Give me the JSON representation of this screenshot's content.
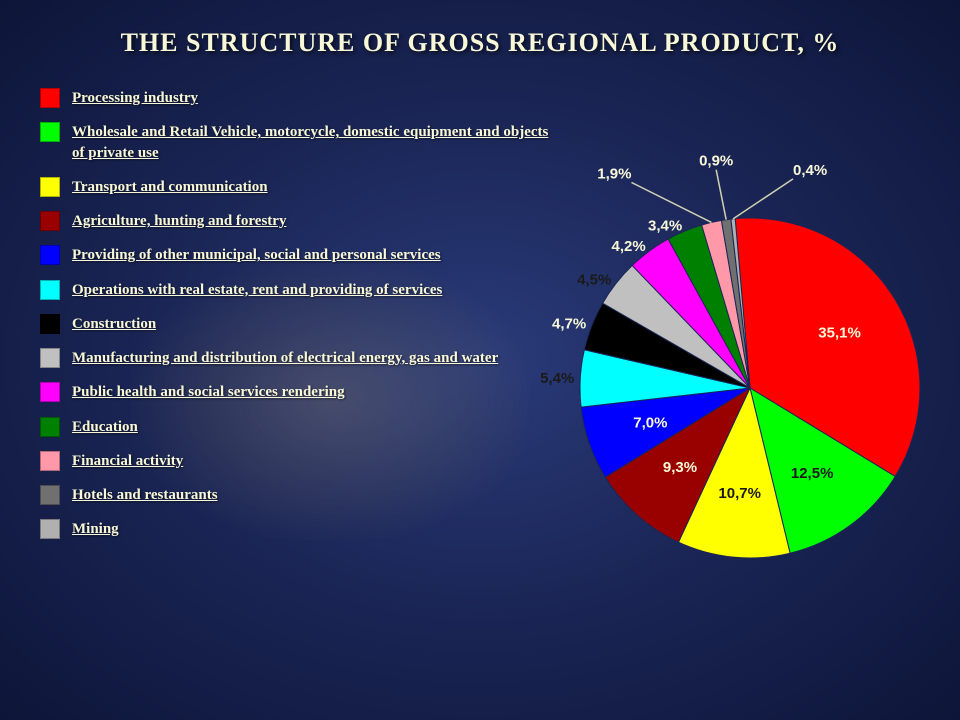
{
  "title": "THE STRUCTURE OF GROSS REGIONAL PRODUCT, %",
  "chart": {
    "type": "pie",
    "background": "#18285a",
    "title_color": "#f8f8d8",
    "title_fontsize": 26,
    "label_fontsize": 15,
    "label_color_light": "#f8f8d8",
    "label_color_dark": "#1a1a1a",
    "start_angle_deg": -5,
    "slices": [
      {
        "label": "Processing industry",
        "value": 35.1,
        "display": "35,1%",
        "color": "#ff0000",
        "label_pos": "inside"
      },
      {
        "label": "Wholesale and Retail Vehicle, motorcycle, domestic equipment and objects of private use",
        "value": 12.5,
        "display": "12,5%",
        "color": "#00ff00",
        "label_pos": "inside",
        "text_dark": true
      },
      {
        "label": "Transport and communication",
        "value": 10.7,
        "display": "10,7%",
        "color": "#ffff00",
        "label_pos": "inside",
        "text_dark": true
      },
      {
        "label": "Agriculture, hunting and forestry",
        "value": 9.3,
        "display": "9,3%",
        "color": "#990000",
        "label_pos": "inside"
      },
      {
        "label": "Providing of other municipal, social and personal services",
        "value": 7.0,
        "display": "7,0%",
        "color": "#0000ff",
        "label_pos": "inside"
      },
      {
        "label": "Operations with real estate, rent and providing of services",
        "value": 5.4,
        "display": "5,4%",
        "color": "#00ffff",
        "label_pos": "outside",
        "text_dark": true
      },
      {
        "label": "Construction",
        "value": 4.7,
        "display": "4,7%",
        "color": "#000000",
        "label_pos": "outside"
      },
      {
        "label": "Manufacturing and distribution of electrical energy, gas and water",
        "value": 4.5,
        "display": "4,5%",
        "color": "#c0c0c0",
        "label_pos": "outside",
        "text_dark": true
      },
      {
        "label": "Public health and social services rendering",
        "value": 4.2,
        "display": "4,2%",
        "color": "#ff00ff",
        "label_pos": "outside"
      },
      {
        "label": "Education",
        "value": 3.4,
        "display": "3,4%",
        "color": "#008000",
        "label_pos": "outside"
      },
      {
        "label": "Financial activity",
        "value": 1.9,
        "display": "1,9%",
        "color": "#ff99aa",
        "label_pos": "callout"
      },
      {
        "label": "Hotels and restaurants",
        "value": 0.9,
        "display": "0,9%",
        "color": "#707070",
        "label_pos": "callout"
      },
      {
        "label": "Mining",
        "value": 0.4,
        "display": "0,4%",
        "color": "#b0b0b0",
        "label_pos": "callout"
      }
    ]
  },
  "legend": {
    "swatch_size": 20,
    "fontsize": 15,
    "underline": true
  }
}
